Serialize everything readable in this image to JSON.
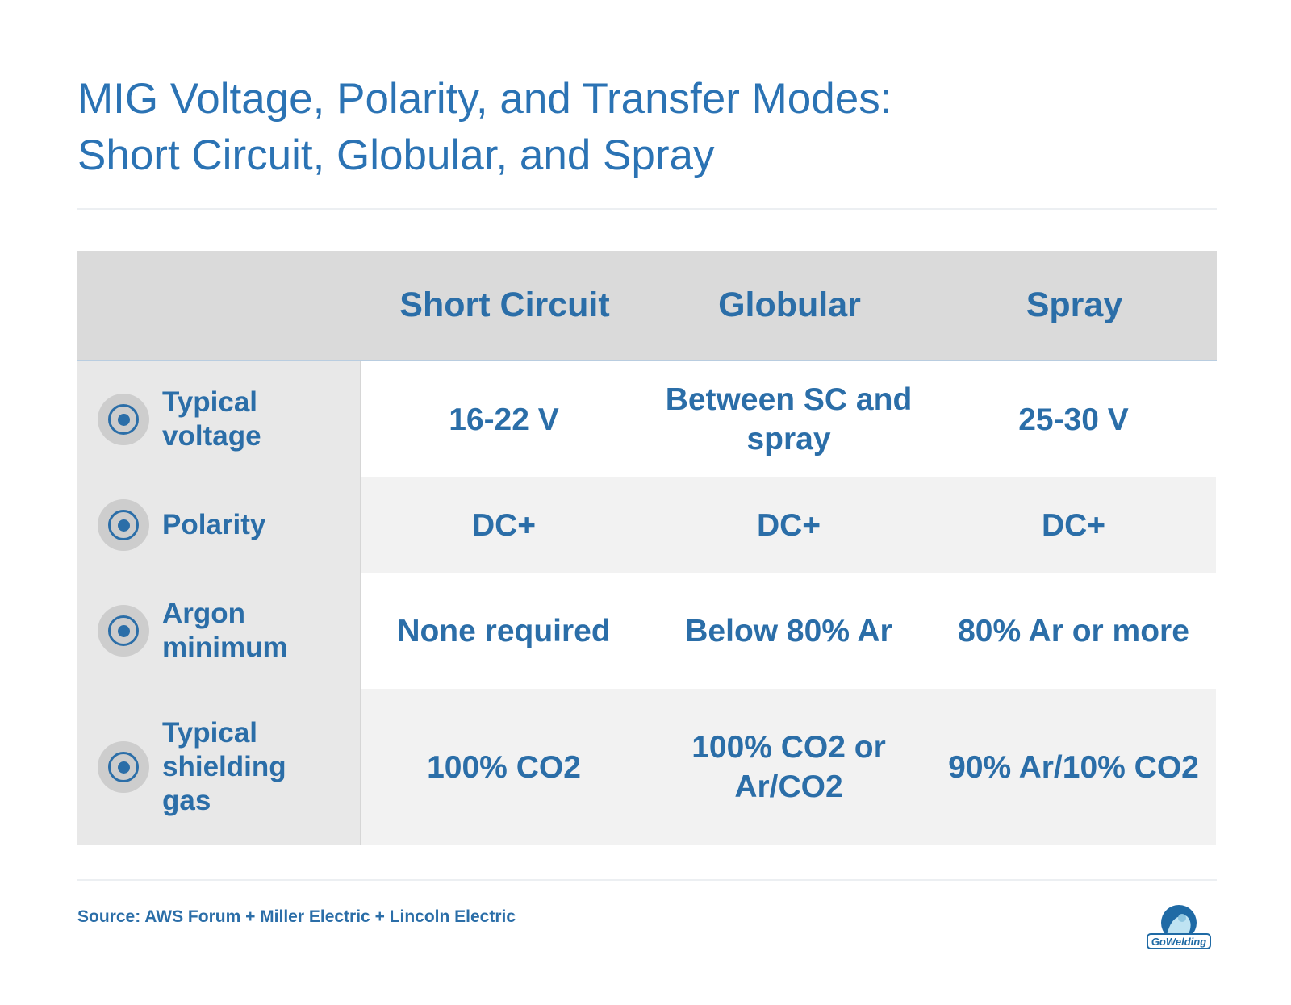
{
  "title": {
    "line1": "MIG Voltage, Polarity, and Transfer Modes:",
    "line2": "Short Circuit, Globular, and Spray"
  },
  "table": {
    "columns": [
      "Short Circuit",
      "Globular",
      "Spray"
    ],
    "rows": [
      {
        "label": "Typical voltage",
        "values": [
          "16-22 V",
          "Between SC and spray",
          "25-30 V"
        ]
      },
      {
        "label": "Polarity",
        "values": [
          "DC+",
          "DC+",
          "DC+"
        ]
      },
      {
        "label": "Argon minimum",
        "values": [
          "None required",
          "Below 80% Ar",
          "80% Ar or more"
        ]
      },
      {
        "label": "Typical shielding gas",
        "values": [
          "100% CO2",
          "100% CO2 or Ar/CO2",
          "90% Ar/10% CO2"
        ]
      }
    ]
  },
  "source": "Source: AWS Forum + Miller Electric + Lincoln Electric",
  "logo": {
    "text": "GoWelding",
    "icon": "welder-logo-icon"
  },
  "colors": {
    "accent": "#2b6ea8",
    "header_bg": "#dadada",
    "rowhead_bg": "#e8e8e8",
    "alt_row_bg": "#f2f2f2"
  }
}
